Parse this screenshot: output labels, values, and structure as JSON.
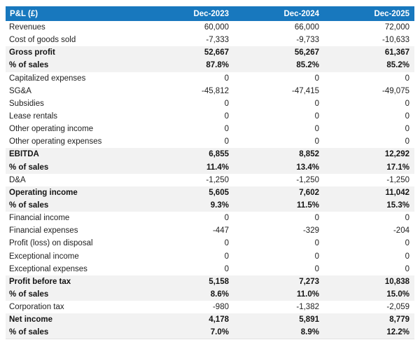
{
  "page": {
    "background": "#FFFFFF"
  },
  "table": {
    "title": "P&L (£)",
    "columns": [
      "Dec-2023",
      "Dec-2024",
      "Dec-2025"
    ],
    "colors": {
      "header_bg": "#1878BE",
      "header_text": "#FFFFFF",
      "highlight_bg": "#F2F2F2",
      "body_text": "#1E1E1E"
    },
    "rows": [
      {
        "label": "Revenues",
        "values": [
          "60,000",
          "66,000",
          "72,000"
        ],
        "bold": false
      },
      {
        "label": "Cost of goods sold",
        "values": [
          "-7,333",
          "-9,733",
          "-10,633"
        ],
        "bold": false
      },
      {
        "label": "Gross profit",
        "values": [
          "52,667",
          "56,267",
          "61,367"
        ],
        "bold": true
      },
      {
        "label": "% of sales",
        "values": [
          "87.8%",
          "85.2%",
          "85.2%"
        ],
        "bold": true
      },
      {
        "label": "Capitalized expenses",
        "values": [
          "0",
          "0",
          "0"
        ],
        "bold": false
      },
      {
        "label": "SG&A",
        "values": [
          "-45,812",
          "-47,415",
          "-49,075"
        ],
        "bold": false
      },
      {
        "label": "Subsidies",
        "values": [
          "0",
          "0",
          "0"
        ],
        "bold": false
      },
      {
        "label": "Lease rentals",
        "values": [
          "0",
          "0",
          "0"
        ],
        "bold": false
      },
      {
        "label": "Other operating income",
        "values": [
          "0",
          "0",
          "0"
        ],
        "bold": false
      },
      {
        "label": "Other operating expenses",
        "values": [
          "0",
          "0",
          "0"
        ],
        "bold": false
      },
      {
        "label": "EBITDA",
        "values": [
          "6,855",
          "8,852",
          "12,292"
        ],
        "bold": true
      },
      {
        "label": "% of sales",
        "values": [
          "11.4%",
          "13.4%",
          "17.1%"
        ],
        "bold": true
      },
      {
        "label": "D&A",
        "values": [
          "-1,250",
          "-1,250",
          "-1,250"
        ],
        "bold": false
      },
      {
        "label": "Operating income",
        "values": [
          "5,605",
          "7,602",
          "11,042"
        ],
        "bold": true
      },
      {
        "label": "% of sales",
        "values": [
          "9.3%",
          "11.5%",
          "15.3%"
        ],
        "bold": true
      },
      {
        "label": "Financial income",
        "values": [
          "0",
          "0",
          "0"
        ],
        "bold": false
      },
      {
        "label": "Financial expenses",
        "values": [
          "-447",
          "-329",
          "-204"
        ],
        "bold": false
      },
      {
        "label": "Profit (loss) on disposal",
        "values": [
          "0",
          "0",
          "0"
        ],
        "bold": false
      },
      {
        "label": "Exceptional income",
        "values": [
          "0",
          "0",
          "0"
        ],
        "bold": false
      },
      {
        "label": "Exceptional expenses",
        "values": [
          "0",
          "0",
          "0"
        ],
        "bold": false
      },
      {
        "label": "Profit before tax",
        "values": [
          "5,158",
          "7,273",
          "10,838"
        ],
        "bold": true
      },
      {
        "label": "% of sales",
        "values": [
          "8.6%",
          "11.0%",
          "15.0%"
        ],
        "bold": true
      },
      {
        "label": "Corporation tax",
        "values": [
          "-980",
          "-1,382",
          "-2,059"
        ],
        "bold": false
      },
      {
        "label": "Net income",
        "values": [
          "4,178",
          "5,891",
          "8,779"
        ],
        "bold": true
      },
      {
        "label": "% of sales",
        "values": [
          "7.0%",
          "8.9%",
          "12.2%"
        ],
        "bold": true
      }
    ]
  },
  "chart_data": {
    "type": "table",
    "title": "P&L (£)",
    "columns": [
      "Dec-2023",
      "Dec-2024",
      "Dec-2025"
    ],
    "rows": [
      {
        "label": "Revenues",
        "unit": "£",
        "values": [
          60000,
          66000,
          72000
        ]
      },
      {
        "label": "Cost of goods sold",
        "unit": "£",
        "values": [
          -7333,
          -9733,
          -10633
        ]
      },
      {
        "label": "Gross profit",
        "unit": "£",
        "values": [
          52667,
          56267,
          61367
        ]
      },
      {
        "label": "Gross profit % of sales",
        "unit": "%",
        "values": [
          87.8,
          85.2,
          85.2
        ]
      },
      {
        "label": "Capitalized expenses",
        "unit": "£",
        "values": [
          0,
          0,
          0
        ]
      },
      {
        "label": "SG&A",
        "unit": "£",
        "values": [
          -45812,
          -47415,
          -49075
        ]
      },
      {
        "label": "Subsidies",
        "unit": "£",
        "values": [
          0,
          0,
          0
        ]
      },
      {
        "label": "Lease rentals",
        "unit": "£",
        "values": [
          0,
          0,
          0
        ]
      },
      {
        "label": "Other operating income",
        "unit": "£",
        "values": [
          0,
          0,
          0
        ]
      },
      {
        "label": "Other operating expenses",
        "unit": "£",
        "values": [
          0,
          0,
          0
        ]
      },
      {
        "label": "EBITDA",
        "unit": "£",
        "values": [
          6855,
          8852,
          12292
        ]
      },
      {
        "label": "EBITDA % of sales",
        "unit": "%",
        "values": [
          11.4,
          13.4,
          17.1
        ]
      },
      {
        "label": "D&A",
        "unit": "£",
        "values": [
          -1250,
          -1250,
          -1250
        ]
      },
      {
        "label": "Operating income",
        "unit": "£",
        "values": [
          5605,
          7602,
          11042
        ]
      },
      {
        "label": "Operating income % of sales",
        "unit": "%",
        "values": [
          9.3,
          11.5,
          15.3
        ]
      },
      {
        "label": "Financial income",
        "unit": "£",
        "values": [
          0,
          0,
          0
        ]
      },
      {
        "label": "Financial expenses",
        "unit": "£",
        "values": [
          -447,
          -329,
          -204
        ]
      },
      {
        "label": "Profit (loss) on disposal",
        "unit": "£",
        "values": [
          0,
          0,
          0
        ]
      },
      {
        "label": "Exceptional income",
        "unit": "£",
        "values": [
          0,
          0,
          0
        ]
      },
      {
        "label": "Exceptional expenses",
        "unit": "£",
        "values": [
          0,
          0,
          0
        ]
      },
      {
        "label": "Profit before tax",
        "unit": "£",
        "values": [
          5158,
          7273,
          10838
        ]
      },
      {
        "label": "Profit before tax % of sales",
        "unit": "%",
        "values": [
          8.6,
          11.0,
          15.0
        ]
      },
      {
        "label": "Corporation tax",
        "unit": "£",
        "values": [
          -980,
          -1382,
          -2059
        ]
      },
      {
        "label": "Net income",
        "unit": "£",
        "values": [
          4178,
          5891,
          8779
        ]
      },
      {
        "label": "Net income % of sales",
        "unit": "%",
        "values": [
          7.0,
          8.9,
          12.2
        ]
      }
    ]
  }
}
